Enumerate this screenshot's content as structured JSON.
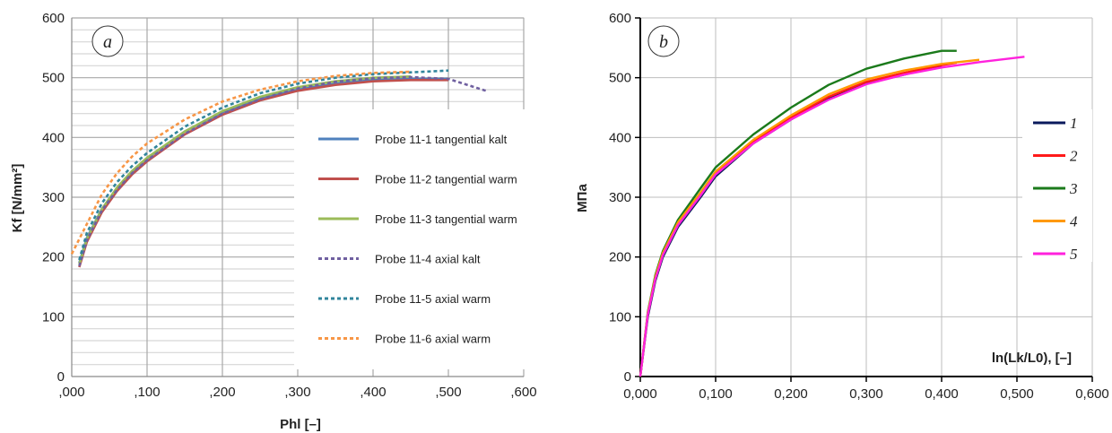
{
  "chart_data": [
    {
      "type": "line",
      "panel_tag": "a",
      "xlabel": "Phl [–]",
      "ylabel": "Kf [N/mm²]",
      "xlim": [
        0,
        0.6
      ],
      "ylim": [
        0,
        600
      ],
      "x_ticks": [
        ",000",
        ",100",
        ",200",
        ",300",
        ",400",
        ",500",
        ",600"
      ],
      "y_ticks": [
        "0",
        "100",
        "200",
        "300",
        "400",
        "500",
        "600"
      ],
      "grid": true,
      "legend_position": "right",
      "series": [
        {
          "name": "Probe 11-1 tangential kalt",
          "color": "#4f81bd",
          "dash": "solid",
          "points": [
            [
              0.01,
              190
            ],
            [
              0.02,
              232
            ],
            [
              0.04,
              280
            ],
            [
              0.06,
              315
            ],
            [
              0.08,
              342
            ],
            [
              0.1,
              365
            ],
            [
              0.15,
              410
            ],
            [
              0.2,
              442
            ],
            [
              0.25,
              465
            ],
            [
              0.3,
              480
            ],
            [
              0.35,
              490
            ],
            [
              0.4,
              496
            ],
            [
              0.45,
              498
            ],
            [
              0.5,
              498
            ]
          ]
        },
        {
          "name": "Probe 11-2 tangential warm",
          "color": "#c0504d",
          "dash": "solid",
          "points": [
            [
              0.01,
              183
            ],
            [
              0.02,
              225
            ],
            [
              0.04,
              275
            ],
            [
              0.06,
              310
            ],
            [
              0.08,
              338
            ],
            [
              0.1,
              360
            ],
            [
              0.15,
              405
            ],
            [
              0.2,
              438
            ],
            [
              0.25,
              462
            ],
            [
              0.3,
              478
            ],
            [
              0.35,
              488
            ],
            [
              0.4,
              494
            ],
            [
              0.45,
              496
            ],
            [
              0.5,
              496
            ]
          ]
        },
        {
          "name": "Probe 11-3 tangential warm",
          "color": "#9bbb59",
          "dash": "solid",
          "points": [
            [
              0.01,
              188
            ],
            [
              0.02,
              230
            ],
            [
              0.04,
              280
            ],
            [
              0.06,
              316
            ],
            [
              0.08,
              344
            ],
            [
              0.1,
              366
            ],
            [
              0.15,
              410
            ],
            [
              0.2,
              444
            ],
            [
              0.25,
              468
            ],
            [
              0.3,
              484
            ],
            [
              0.35,
              494
            ],
            [
              0.4,
              500
            ],
            [
              0.45,
              502
            ]
          ]
        },
        {
          "name": "Probe 11-4 axial kalt",
          "color": "#7060a0",
          "dash": "dot",
          "points": [
            [
              0.01,
              185
            ],
            [
              0.02,
              228
            ],
            [
              0.04,
              278
            ],
            [
              0.06,
              312
            ],
            [
              0.08,
              340
            ],
            [
              0.1,
              362
            ],
            [
              0.15,
              406
            ],
            [
              0.2,
              440
            ],
            [
              0.25,
              464
            ],
            [
              0.3,
              482
            ],
            [
              0.35,
              493
            ],
            [
              0.4,
              499
            ],
            [
              0.45,
              501
            ],
            [
              0.5,
              498
            ],
            [
              0.55,
              478
            ]
          ]
        },
        {
          "name": "Probe 11-5 axial warm",
          "color": "#31859c",
          "dash": "dot",
          "points": [
            [
              0.01,
              195
            ],
            [
              0.02,
              240
            ],
            [
              0.04,
              290
            ],
            [
              0.06,
              325
            ],
            [
              0.08,
              352
            ],
            [
              0.1,
              374
            ],
            [
              0.15,
              418
            ],
            [
              0.2,
              450
            ],
            [
              0.25,
              474
            ],
            [
              0.3,
              490
            ],
            [
              0.35,
              500
            ],
            [
              0.4,
              506
            ],
            [
              0.45,
              509
            ],
            [
              0.5,
              512
            ]
          ]
        },
        {
          "name": "Probe 11-6 axial warm",
          "color": "#f79646",
          "dash": "dot",
          "points": [
            [
              0.0,
              205
            ],
            [
              0.02,
              255
            ],
            [
              0.04,
              305
            ],
            [
              0.06,
              340
            ],
            [
              0.08,
              368
            ],
            [
              0.1,
              390
            ],
            [
              0.15,
              430
            ],
            [
              0.2,
              460
            ],
            [
              0.25,
              480
            ],
            [
              0.3,
              494
            ],
            [
              0.35,
              503
            ],
            [
              0.4,
              508
            ],
            [
              0.45,
              510
            ]
          ]
        }
      ]
    },
    {
      "type": "line",
      "panel_tag": "b",
      "xlabel": "ln(Lk/L0), [–]",
      "ylabel": "МПа",
      "xlim": [
        0,
        0.6
      ],
      "ylim": [
        0,
        600
      ],
      "x_ticks": [
        "0,000",
        "0,100",
        "0,200",
        "0,300",
        "0,400",
        "0,500",
        "0,600"
      ],
      "y_ticks": [
        "0",
        "100",
        "200",
        "300",
        "400",
        "500",
        "600"
      ],
      "grid": true,
      "legend_position": "right",
      "series": [
        {
          "name": "1",
          "color": "#0a1a5c",
          "dash": "solid",
          "points": [
            [
              0,
              0
            ],
            [
              0.01,
              100
            ],
            [
              0.02,
              160
            ],
            [
              0.03,
              200
            ],
            [
              0.05,
              250
            ],
            [
              0.08,
              300
            ],
            [
              0.1,
              335
            ],
            [
              0.15,
              390
            ],
            [
              0.2,
              430
            ],
            [
              0.25,
              465
            ],
            [
              0.3,
              490
            ],
            [
              0.35,
              505
            ],
            [
              0.4,
              520
            ]
          ]
        },
        {
          "name": "2",
          "color": "#ff1a1a",
          "dash": "solid",
          "points": [
            [
              0,
              0
            ],
            [
              0.01,
              105
            ],
            [
              0.02,
              165
            ],
            [
              0.03,
              205
            ],
            [
              0.05,
              255
            ],
            [
              0.08,
              305
            ],
            [
              0.1,
              340
            ],
            [
              0.15,
              393
            ],
            [
              0.2,
              433
            ],
            [
              0.25,
              468
            ],
            [
              0.3,
              493
            ],
            [
              0.35,
              508
            ],
            [
              0.4,
              521
            ],
            [
              0.42,
              525
            ]
          ]
        },
        {
          "name": "3",
          "color": "#1b7a1b",
          "dash": "solid",
          "points": [
            [
              0,
              0
            ],
            [
              0.01,
              108
            ],
            [
              0.02,
              170
            ],
            [
              0.03,
              210
            ],
            [
              0.05,
              262
            ],
            [
              0.08,
              315
            ],
            [
              0.1,
              350
            ],
            [
              0.15,
              405
            ],
            [
              0.2,
              450
            ],
            [
              0.25,
              488
            ],
            [
              0.3,
              515
            ],
            [
              0.35,
              532
            ],
            [
              0.4,
              545
            ],
            [
              0.42,
              545
            ]
          ]
        },
        {
          "name": "4",
          "color": "#ff9900",
          "dash": "solid",
          "points": [
            [
              0,
              0
            ],
            [
              0.01,
              106
            ],
            [
              0.02,
              167
            ],
            [
              0.03,
              207
            ],
            [
              0.05,
              258
            ],
            [
              0.08,
              308
            ],
            [
              0.1,
              343
            ],
            [
              0.15,
              396
            ],
            [
              0.2,
              437
            ],
            [
              0.25,
              472
            ],
            [
              0.3,
              497
            ],
            [
              0.35,
              512
            ],
            [
              0.4,
              523
            ],
            [
              0.45,
              530
            ]
          ]
        },
        {
          "name": "5",
          "color": "#ff22dd",
          "dash": "solid",
          "points": [
            [
              0,
              0
            ],
            [
              0.01,
              104
            ],
            [
              0.02,
              163
            ],
            [
              0.03,
              203
            ],
            [
              0.05,
              253
            ],
            [
              0.08,
              303
            ],
            [
              0.1,
              338
            ],
            [
              0.15,
              390
            ],
            [
              0.2,
              430
            ],
            [
              0.25,
              463
            ],
            [
              0.3,
              489
            ],
            [
              0.35,
              505
            ],
            [
              0.4,
              517
            ],
            [
              0.45,
              526
            ],
            [
              0.51,
              535
            ]
          ]
        }
      ]
    }
  ]
}
